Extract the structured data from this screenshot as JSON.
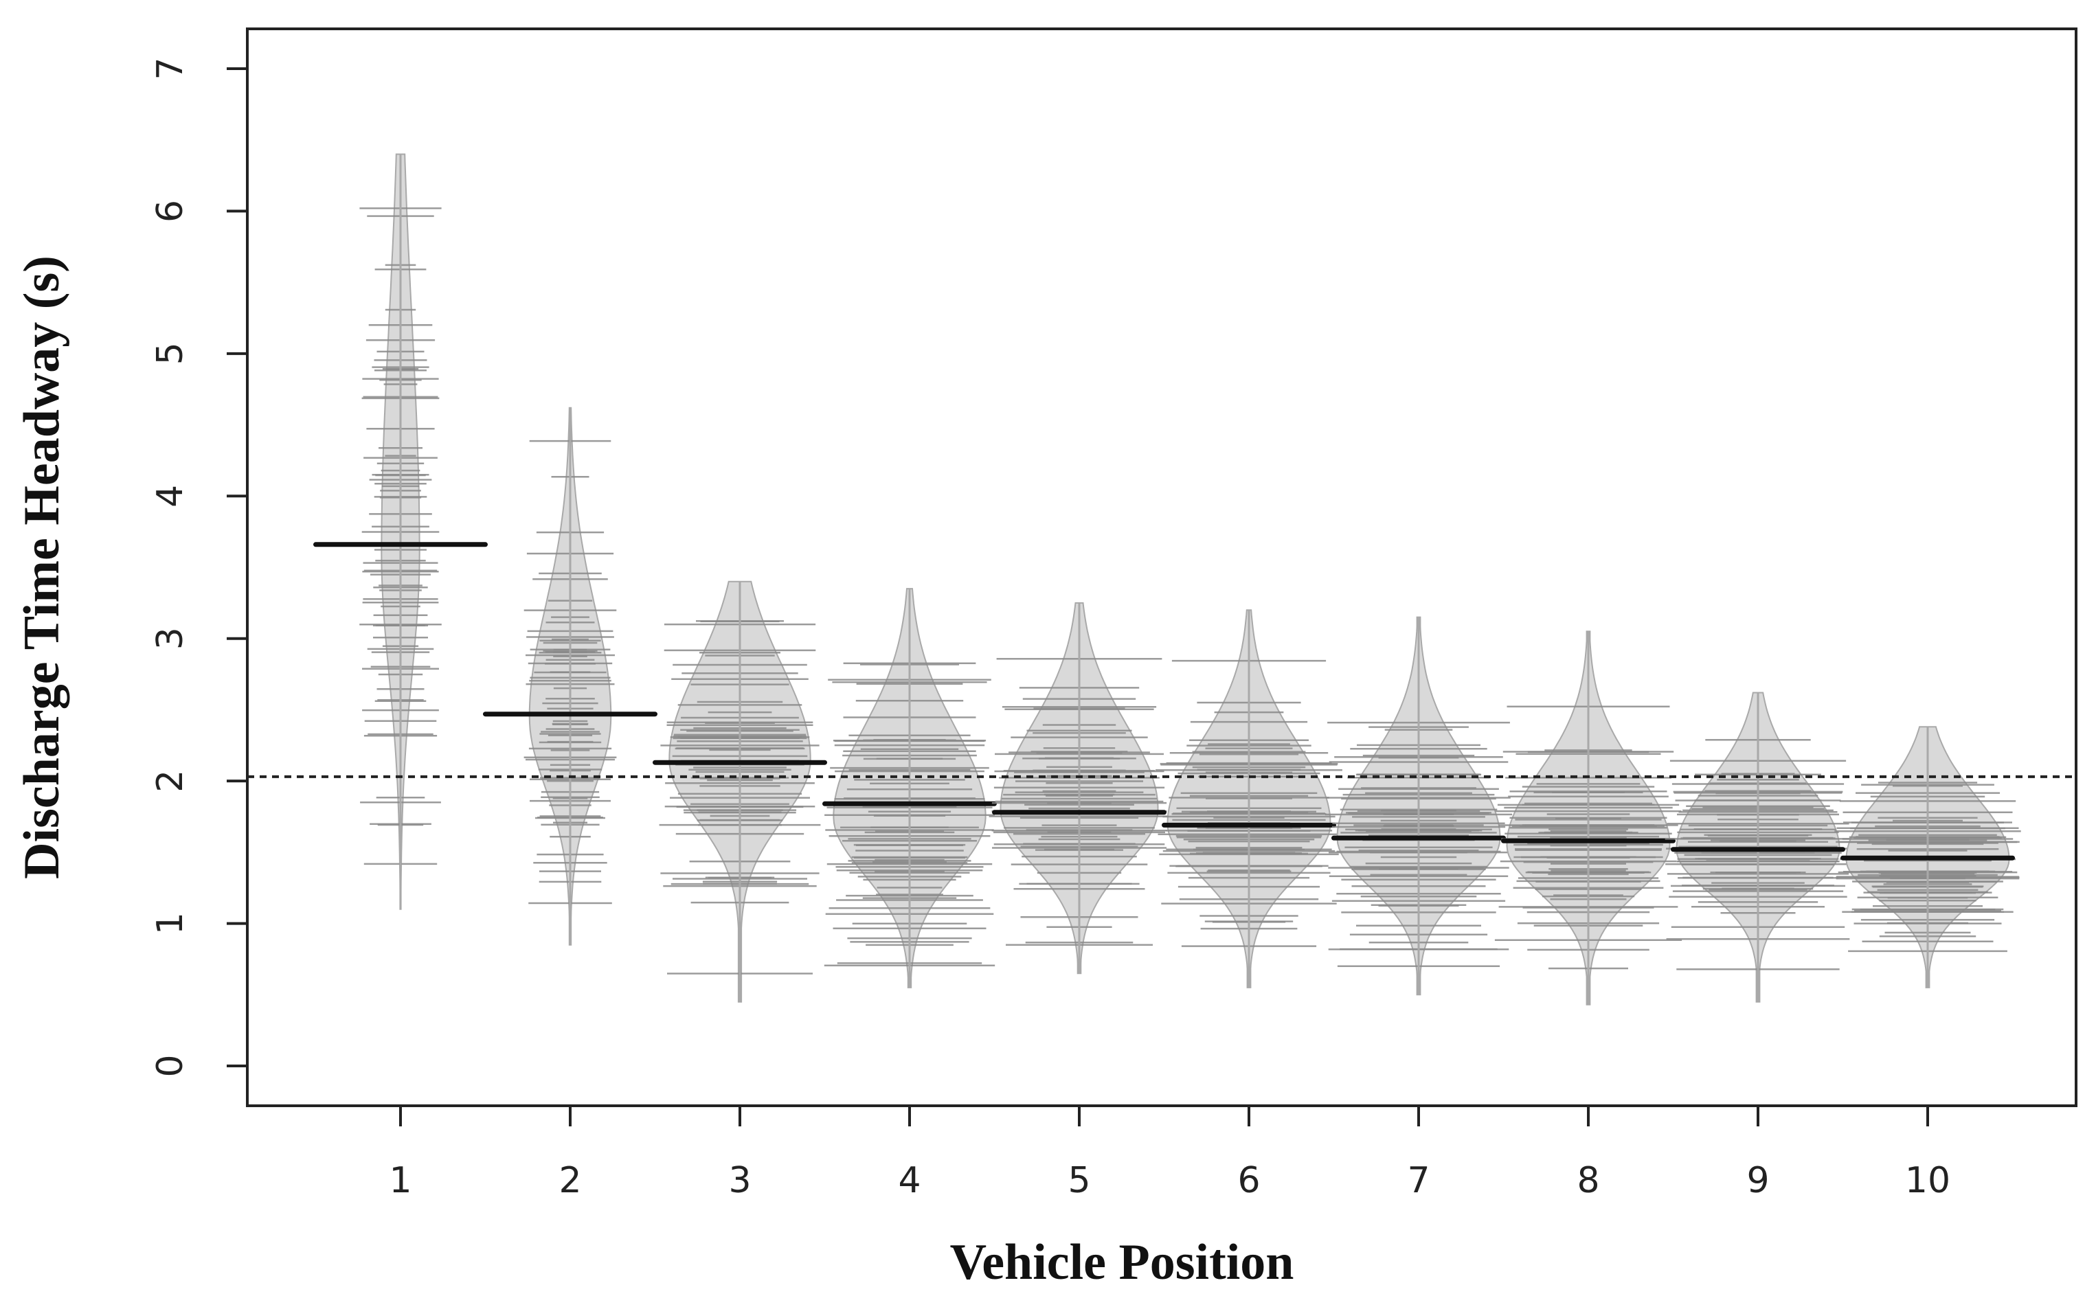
{
  "chart_data": {
    "type": "beanplot",
    "title": "",
    "xlabel": "Vehicle Position",
    "ylabel": "Discharge Time Headway (s)",
    "ylim": [
      0,
      7
    ],
    "xlim": [
      0.1,
      10.9
    ],
    "categories": [
      "1",
      "2",
      "3",
      "4",
      "5",
      "6",
      "7",
      "8",
      "9",
      "10"
    ],
    "yticks": [
      0,
      1,
      2,
      3,
      4,
      5,
      6,
      7
    ],
    "overall_mean": 2.03,
    "grid": false,
    "legend": "none",
    "beans": [
      {
        "position": 1,
        "mean": 3.66,
        "min": 1.1,
        "max": 6.4,
        "median": 3.6,
        "spread": 0.85,
        "max_width": 0.07
      },
      {
        "position": 2,
        "mean": 2.47,
        "min": 0.85,
        "max": 4.62,
        "median": 2.45,
        "spread": 0.5,
        "max_width": 0.15
      },
      {
        "position": 3,
        "mean": 2.13,
        "min": 0.45,
        "max": 3.4,
        "median": 2.15,
        "spread": 0.42,
        "max_width": 0.26
      },
      {
        "position": 4,
        "mean": 1.84,
        "min": 0.55,
        "max": 3.35,
        "median": 1.75,
        "spread": 0.4,
        "max_width": 0.28
      },
      {
        "position": 5,
        "mean": 1.78,
        "min": 0.65,
        "max": 3.25,
        "median": 1.8,
        "spread": 0.38,
        "max_width": 0.29
      },
      {
        "position": 6,
        "mean": 1.69,
        "min": 0.55,
        "max": 3.2,
        "median": 1.7,
        "spread": 0.36,
        "max_width": 0.3
      },
      {
        "position": 7,
        "mean": 1.6,
        "min": 0.5,
        "max": 3.15,
        "median": 1.6,
        "spread": 0.34,
        "max_width": 0.3
      },
      {
        "position": 8,
        "mean": 1.58,
        "min": 0.43,
        "max": 3.05,
        "median": 1.55,
        "spread": 0.33,
        "max_width": 0.3
      },
      {
        "position": 9,
        "mean": 1.52,
        "min": 0.45,
        "max": 2.62,
        "median": 1.52,
        "spread": 0.3,
        "max_width": 0.3
      },
      {
        "position": 10,
        "mean": 1.46,
        "min": 0.55,
        "max": 2.38,
        "median": 1.45,
        "spread": 0.28,
        "max_width": 0.3
      }
    ],
    "colors": {
      "bean_fill": "#d9d9d9",
      "bean_outline": "#a9a9a9",
      "obs_lines": "#8a8a8a",
      "mean_line": "#111111",
      "reference_line": "#222222",
      "frame": "#222222"
    }
  }
}
